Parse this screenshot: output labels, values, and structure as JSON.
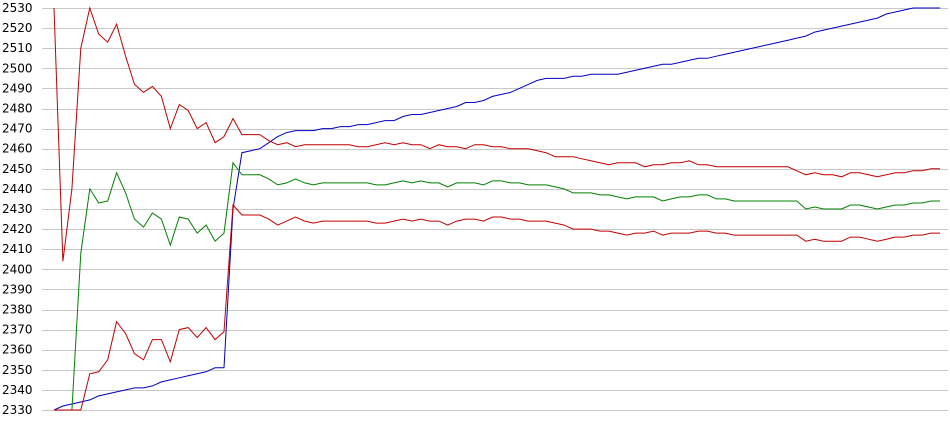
{
  "chart_data": {
    "type": "line",
    "title": "",
    "xlabel": "",
    "ylabel": "",
    "ylim": [
      2330,
      2530
    ],
    "yticks": [
      2330,
      2340,
      2350,
      2360,
      2370,
      2380,
      2390,
      2400,
      2410,
      2420,
      2430,
      2440,
      2450,
      2460,
      2470,
      2480,
      2490,
      2500,
      2510,
      2520,
      2530
    ],
    "grid": true,
    "legend": "none",
    "x": [
      0,
      1,
      2,
      3,
      4,
      5,
      6,
      7,
      8,
      9,
      10,
      11,
      12,
      13,
      14,
      15,
      16,
      17,
      18,
      19,
      20,
      21,
      22,
      23,
      24,
      25,
      26,
      27,
      28,
      29,
      30,
      31,
      32,
      33,
      34,
      35,
      36,
      37,
      38,
      39,
      40,
      41,
      42,
      43,
      44,
      45,
      46,
      47,
      48,
      49,
      50,
      51,
      52,
      53,
      54,
      55,
      56,
      57,
      58,
      59,
      60,
      61,
      62,
      63,
      64,
      65,
      66,
      67,
      68,
      69,
      70,
      71,
      72,
      73,
      74,
      75,
      76,
      77,
      78,
      79,
      80,
      81,
      82,
      83,
      84,
      85,
      86,
      87,
      88,
      89,
      90,
      91,
      92,
      93,
      94,
      95,
      96,
      97,
      98,
      99
    ],
    "series": [
      {
        "color": "#0000c0",
        "values": [
          2330,
          2332,
          2333,
          2334,
          2335,
          2337,
          2338,
          2339,
          2340,
          2341,
          2341,
          2342,
          2344,
          2345,
          2346,
          2347,
          2348,
          2349,
          2351,
          2351,
          2430,
          2458,
          2459,
          2460,
          2463,
          2466,
          2468,
          2469,
          2469,
          2469,
          2470,
          2470,
          2471,
          2471,
          2472,
          2472,
          2473,
          2474,
          2474,
          2476,
          2477,
          2477,
          2478,
          2479,
          2480,
          2481,
          2483,
          2483,
          2484,
          2486,
          2487,
          2488,
          2490,
          2492,
          2494,
          2495,
          2495,
          2495,
          2496,
          2496,
          2497,
          2497,
          2497,
          2497,
          2498,
          2499,
          2500,
          2501,
          2502,
          2502,
          2503,
          2504,
          2505,
          2505,
          2506,
          2507,
          2508,
          2509,
          2510,
          2511,
          2512,
          2513,
          2514,
          2515,
          2516,
          2518,
          2519,
          2520,
          2521,
          2522,
          2523,
          2524,
          2525,
          2527,
          2528,
          2529,
          2530,
          2530,
          2530,
          2530
        ]
      },
      {
        "color": "#c00000",
        "values": [
          2530,
          2404,
          2440,
          2510,
          2530,
          2517,
          2513,
          2522,
          2506,
          2492,
          2488,
          2491,
          2486,
          2470,
          2482,
          2479,
          2470,
          2473,
          2463,
          2466,
          2475,
          2467,
          2467,
          2467,
          2464,
          2462,
          2463,
          2461,
          2462,
          2462,
          2462,
          2462,
          2462,
          2462,
          2461,
          2461,
          2462,
          2463,
          2462,
          2463,
          2462,
          2462,
          2460,
          2462,
          2461,
          2461,
          2460,
          2462,
          2462,
          2461,
          2461,
          2460,
          2460,
          2460,
          2459,
          2458,
          2456,
          2456,
          2456,
          2455,
          2454,
          2453,
          2452,
          2453,
          2453,
          2453,
          2451,
          2452,
          2452,
          2453,
          2453,
          2454,
          2452,
          2452,
          2451,
          2451,
          2451,
          2451,
          2451,
          2451,
          2451,
          2451,
          2451,
          2449,
          2447,
          2448,
          2447,
          2447,
          2446,
          2448,
          2448,
          2447,
          2446,
          2447,
          2448,
          2448,
          2449,
          2449,
          2450,
          2450
        ]
      },
      {
        "color": "#008000",
        "values": [
          2330,
          2330,
          2330,
          2408,
          2440,
          2433,
          2434,
          2448,
          2438,
          2425,
          2421,
          2428,
          2425,
          2412,
          2426,
          2425,
          2418,
          2422,
          2414,
          2418,
          2453,
          2447,
          2447,
          2447,
          2445,
          2442,
          2443,
          2445,
          2443,
          2442,
          2443,
          2443,
          2443,
          2443,
          2443,
          2443,
          2442,
          2442,
          2443,
          2444,
          2443,
          2444,
          2443,
          2443,
          2441,
          2443,
          2443,
          2443,
          2442,
          2444,
          2444,
          2443,
          2443,
          2442,
          2442,
          2442,
          2441,
          2440,
          2438,
          2438,
          2438,
          2437,
          2437,
          2436,
          2435,
          2436,
          2436,
          2436,
          2434,
          2435,
          2436,
          2436,
          2437,
          2437,
          2435,
          2435,
          2434,
          2434,
          2434,
          2434,
          2434,
          2434,
          2434,
          2434,
          2430,
          2431,
          2430,
          2430,
          2430,
          2432,
          2432,
          2431,
          2430,
          2431,
          2432,
          2432,
          2433,
          2433,
          2434,
          2434
        ]
      },
      {
        "color": "#c00000",
        "values": [
          2330,
          2330,
          2330,
          2330,
          2348,
          2349,
          2355,
          2374,
          2368,
          2358,
          2355,
          2365,
          2365,
          2354,
          2370,
          2371,
          2366,
          2371,
          2365,
          2369,
          2432,
          2427,
          2427,
          2427,
          2425,
          2422,
          2424,
          2426,
          2424,
          2423,
          2424,
          2424,
          2424,
          2424,
          2424,
          2424,
          2423,
          2423,
          2424,
          2425,
          2424,
          2425,
          2424,
          2424,
          2422,
          2424,
          2425,
          2425,
          2424,
          2426,
          2426,
          2425,
          2425,
          2424,
          2424,
          2424,
          2423,
          2422,
          2420,
          2420,
          2420,
          2419,
          2419,
          2418,
          2417,
          2418,
          2418,
          2419,
          2417,
          2418,
          2418,
          2418,
          2419,
          2419,
          2418,
          2418,
          2417,
          2417,
          2417,
          2417,
          2417,
          2417,
          2417,
          2417,
          2414,
          2415,
          2414,
          2414,
          2414,
          2416,
          2416,
          2415,
          2414,
          2415,
          2416,
          2416,
          2417,
          2417,
          2418,
          2418
        ]
      }
    ]
  }
}
